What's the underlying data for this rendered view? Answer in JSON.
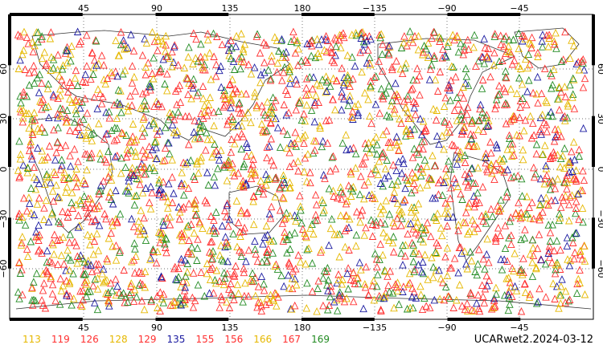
{
  "map": {
    "caption": "UCARwet2.2024-03-12",
    "lon_ticks": [
      "45",
      "90",
      "135",
      "180",
      "−135",
      "−90",
      "−45"
    ],
    "lat_ticks": [
      "60",
      "30",
      "0",
      "−30",
      "−60"
    ],
    "lat_ticks_right": [
      "60",
      "30",
      "0",
      "−30",
      "−60"
    ],
    "marker_shape": "triangle-icon",
    "legend": [
      {
        "label": "113",
        "color": "#e6b800"
      },
      {
        "label": "119",
        "color": "#ff3030"
      },
      {
        "label": "126",
        "color": "#ff3030"
      },
      {
        "label": "128",
        "color": "#e6b800"
      },
      {
        "label": "129",
        "color": "#ff3030"
      },
      {
        "label": "135",
        "color": "#1a1aa0"
      },
      {
        "label": "155",
        "color": "#ff3030"
      },
      {
        "label": "156",
        "color": "#ff3030"
      },
      {
        "label": "166",
        "color": "#e6b800"
      },
      {
        "label": "167",
        "color": "#ff3030"
      },
      {
        "label": "169",
        "color": "#228b22"
      }
    ]
  }
}
